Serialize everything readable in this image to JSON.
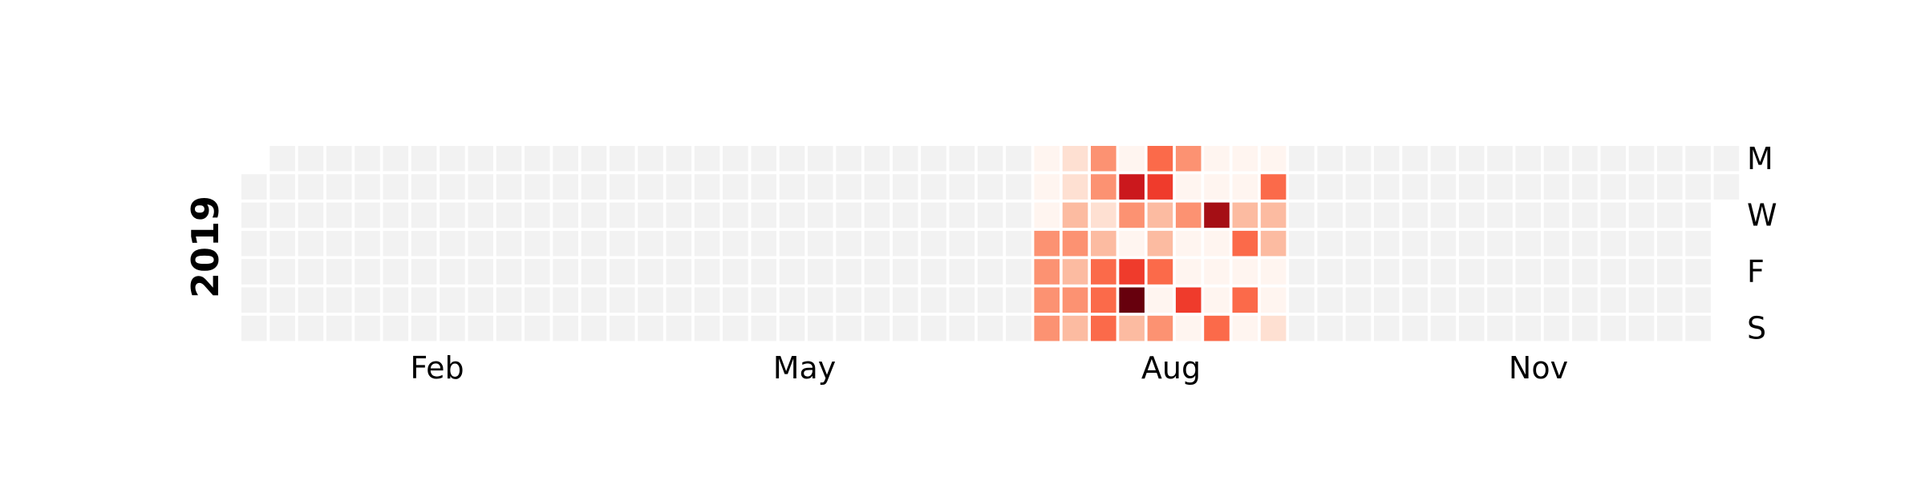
{
  "chart_data": {
    "type": "heatmap",
    "year_label": "2019",
    "x_tick_labels": [
      "Feb",
      "May",
      "Aug",
      "Nov"
    ],
    "y_tick_labels": [
      "M",
      "W",
      "F",
      "S"
    ],
    "y_tick_rows": [
      0,
      2,
      4,
      6
    ],
    "empty_color": "#f2f2f2",
    "cmap": "Reds",
    "vmax": 8,
    "grid": {
      "start_weekday_offset": 1,
      "weeks": 53,
      "days_per_week": 7,
      "active_weeks": {
        "28": [
          0,
          0,
          0,
          3,
          3,
          3,
          3
        ],
        "29": [
          1,
          1,
          2,
          3,
          2,
          3,
          2
        ],
        "30": [
          3,
          3,
          1,
          2,
          4,
          4,
          4
        ],
        "31": [
          0,
          6,
          3,
          0,
          5,
          8,
          2
        ],
        "32": [
          4,
          5,
          2,
          2,
          4,
          0,
          3
        ],
        "33": [
          3,
          0,
          3,
          0,
          0,
          5,
          0
        ],
        "34": [
          0,
          0,
          7,
          0,
          0,
          0,
          4
        ],
        "35": [
          0,
          0,
          2,
          4,
          0,
          4,
          0
        ],
        "36": [
          0,
          4,
          2,
          2,
          0,
          0,
          1
        ]
      }
    }
  }
}
